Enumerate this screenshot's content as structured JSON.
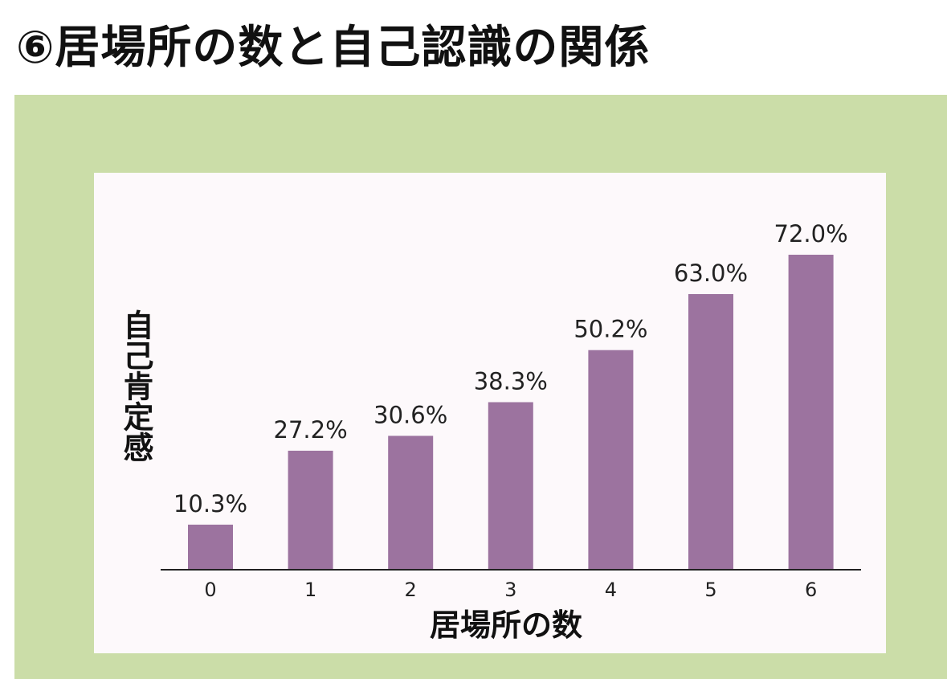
{
  "title": "⑥居場所の数と自己認識の関係",
  "colors": {
    "panel": "#cbdda8",
    "card": "#fdf9fb",
    "bar": "#9c739f",
    "axis": "#222222"
  },
  "chart_data": {
    "type": "bar",
    "title": "⑥居場所の数と自己認識の関係",
    "categories": [
      "0",
      "1",
      "2",
      "3",
      "4",
      "5",
      "6"
    ],
    "values": [
      10.3,
      27.2,
      30.6,
      38.3,
      50.2,
      63.0,
      72.0
    ],
    "data_labels": [
      "10.3%",
      "27.2%",
      "30.6%",
      "38.3%",
      "50.2%",
      "63.0%",
      "72.0%"
    ],
    "xlabel": "居場所の数",
    "ylabel": "自己肯定感",
    "ylim": [
      0,
      72.0
    ],
    "grid": false,
    "legend": "none"
  }
}
